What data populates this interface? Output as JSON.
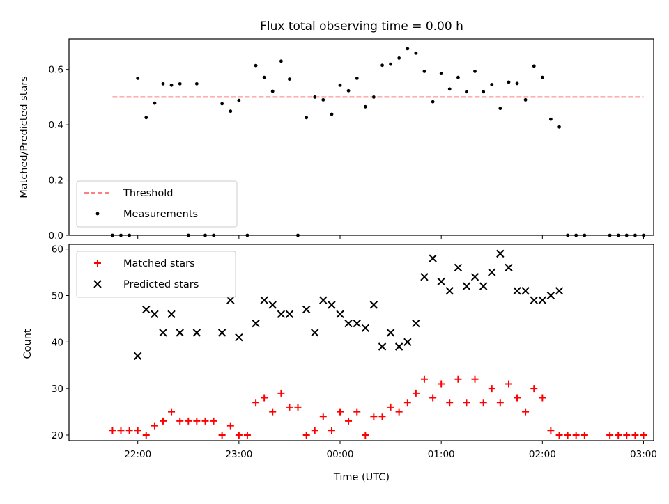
{
  "chart_data": [
    {
      "type": "scatter",
      "title": "Flux total observing time = 0.00 h",
      "xlabel": "",
      "ylabel": "Matched/Predicted stars",
      "ylim": [
        0,
        0.71
      ],
      "xlim": [
        -0.68,
        5.1
      ],
      "x_unit": "hours after 22:00 UTC",
      "yticks": [
        "0.0",
        "0.2",
        "0.4",
        "0.6"
      ],
      "legend_position": "lower-left",
      "series": [
        {
          "name": "Threshold",
          "style": "dashed-line",
          "color": "#ff7f7f",
          "x": [
            -0.25,
            5.0
          ],
          "y": [
            0.5,
            0.5
          ]
        },
        {
          "name": "Measurements",
          "style": "dot",
          "color": "#000000",
          "x": [
            -0.25,
            -0.167,
            -0.083,
            0,
            0.083,
            0.167,
            0.25,
            0.333,
            0.417,
            0.5,
            0.583,
            0.667,
            0.75,
            0.833,
            0.917,
            1,
            1.083,
            1.167,
            1.25,
            1.333,
            1.417,
            1.5,
            1.583,
            1.667,
            1.75,
            1.833,
            1.917,
            2,
            2.083,
            2.167,
            2.25,
            2.333,
            2.417,
            2.5,
            2.583,
            2.667,
            2.75,
            2.833,
            2.917,
            3,
            3.083,
            3.167,
            3.25,
            3.333,
            3.417,
            3.5,
            3.583,
            3.667,
            3.75,
            3.833,
            3.917,
            4,
            4.083,
            4.167,
            4.25,
            4.333,
            4.417,
            4.667,
            4.75,
            4.833,
            4.917,
            5
          ],
          "y": [
            0,
            0,
            0,
            0.568,
            0.426,
            0.478,
            0.548,
            0.543,
            0.548,
            0,
            0.548,
            0,
            0,
            0.476,
            0.449,
            0.488,
            0,
            0.614,
            0.571,
            0.521,
            0.63,
            0.565,
            0,
            0.426,
            0.5,
            0.49,
            0.438,
            0.543,
            0.523,
            0.568,
            0.465,
            0.5,
            0.615,
            0.619,
            0.641,
            0.675,
            0.659,
            0.593,
            0.483,
            0.585,
            0.529,
            0.571,
            0.519,
            0.593,
            0.519,
            0.545,
            0.459,
            0.554,
            0.549,
            0.49,
            0.612,
            0.571,
            0.42,
            0.392,
            0,
            0,
            0,
            0,
            0,
            0,
            0,
            0
          ]
        }
      ]
    },
    {
      "type": "scatter",
      "title": "",
      "xlabel": "Time (UTC)",
      "ylabel": "Count",
      "ylim": [
        18.8,
        61
      ],
      "xlim": [
        -0.68,
        5.1
      ],
      "yticks": [
        "20",
        "30",
        "40",
        "50",
        "60"
      ],
      "xticks": [
        {
          "label": "22:00",
          "value": 0
        },
        {
          "label": "23:00",
          "value": 1
        },
        {
          "label": "00:00",
          "value": 2
        },
        {
          "label": "01:00",
          "value": 3
        },
        {
          "label": "02:00",
          "value": 4
        },
        {
          "label": "03:00",
          "value": 5
        }
      ],
      "legend_position": "upper-left",
      "series": [
        {
          "name": "Matched stars",
          "style": "plus",
          "color": "#ff0000",
          "x": [
            -0.25,
            -0.167,
            -0.083,
            0,
            0.083,
            0.167,
            0.25,
            0.333,
            0.417,
            0.5,
            0.583,
            0.667,
            0.75,
            0.833,
            0.917,
            1,
            1.083,
            1.167,
            1.25,
            1.333,
            1.417,
            1.5,
            1.583,
            1.667,
            1.75,
            1.833,
            1.917,
            2,
            2.083,
            2.167,
            2.25,
            2.333,
            2.417,
            2.5,
            2.583,
            2.667,
            2.75,
            2.833,
            2.917,
            3,
            3.083,
            3.167,
            3.25,
            3.333,
            3.417,
            3.5,
            3.583,
            3.667,
            3.75,
            3.833,
            3.917,
            4,
            4.083,
            4.167,
            4.25,
            4.333,
            4.417,
            4.667,
            4.75,
            4.833,
            4.917,
            5
          ],
          "y": [
            21,
            21,
            21,
            21,
            20,
            22,
            23,
            25,
            23,
            23,
            23,
            23,
            23,
            20,
            22,
            20,
            20,
            27,
            28,
            25,
            29,
            26,
            26,
            20,
            21,
            24,
            21,
            25,
            23,
            25,
            20,
            24,
            24,
            26,
            25,
            27,
            29,
            32,
            28,
            31,
            27,
            32,
            27,
            32,
            27,
            30,
            27,
            31,
            28,
            25,
            30,
            28,
            21,
            20,
            20,
            20,
            20,
            20,
            20,
            20,
            20,
            20
          ]
        },
        {
          "name": "Predicted stars",
          "style": "x",
          "color": "#000000",
          "x": [
            0,
            0.083,
            0.167,
            0.25,
            0.333,
            0.417,
            0.583,
            0.833,
            0.917,
            1,
            1.167,
            1.25,
            1.333,
            1.417,
            1.5,
            1.667,
            1.75,
            1.833,
            1.917,
            2,
            2.083,
            2.167,
            2.25,
            2.333,
            2.417,
            2.5,
            2.583,
            2.667,
            2.75,
            2.833,
            2.917,
            3,
            3.083,
            3.167,
            3.25,
            3.333,
            3.417,
            3.5,
            3.583,
            3.667,
            3.75,
            3.833,
            3.917,
            4,
            4.083,
            4.167
          ],
          "y": [
            37,
            47,
            46,
            42,
            46,
            42,
            42,
            42,
            49,
            41,
            44,
            49,
            48,
            46,
            46,
            47,
            42,
            49,
            48,
            46,
            44,
            44,
            43,
            48,
            39,
            42,
            39,
            40,
            44,
            54,
            58,
            53,
            51,
            56,
            52,
            54,
            52,
            55,
            59,
            56,
            51,
            51,
            49,
            49,
            50,
            51
          ]
        }
      ]
    }
  ]
}
